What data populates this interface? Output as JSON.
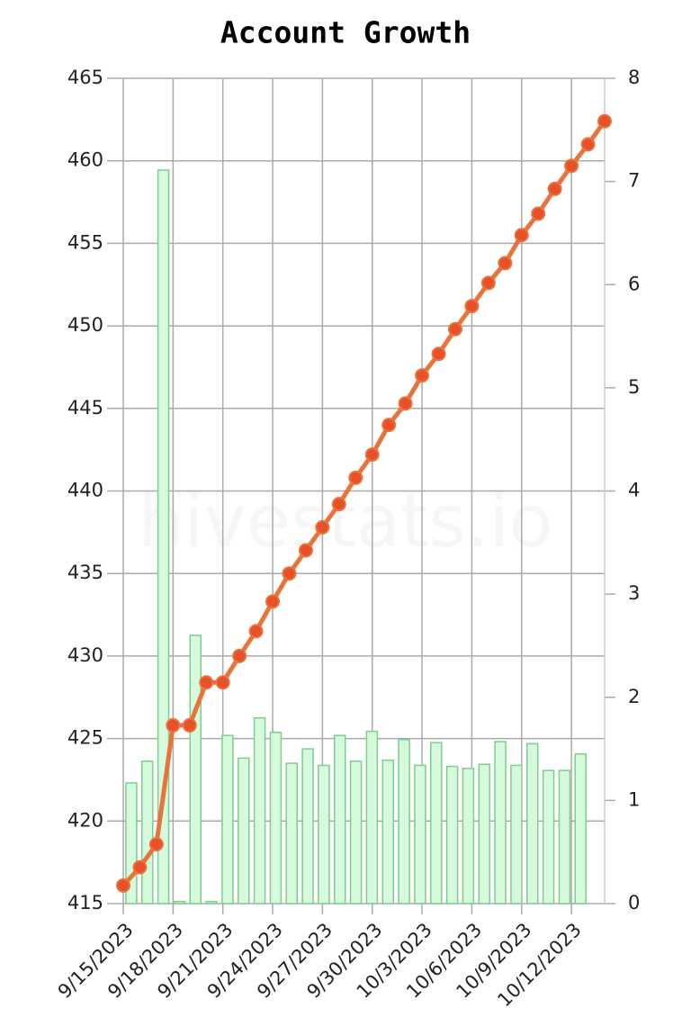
{
  "chart_data": {
    "type": "bar-line",
    "title": "Account Growth",
    "watermark": "hivestats.io",
    "categories": [
      "9/15/2023",
      null,
      null,
      "9/18/2023",
      null,
      null,
      "9/21/2023",
      null,
      null,
      "9/24/2023",
      null,
      null,
      "9/27/2023",
      null,
      null,
      "9/30/2023",
      null,
      null,
      "10/3/2023",
      null,
      null,
      "10/6/2023",
      null,
      null,
      "10/9/2023",
      null,
      null,
      "10/12/2023",
      null,
      null
    ],
    "series": [
      {
        "type": "line",
        "color": "#e8743b",
        "marker_color": "#e8502a",
        "values": [
          416.1,
          417.2,
          418.6,
          425.8,
          425.8,
          428.4,
          428.4,
          430.0,
          431.5,
          433.3,
          435.0,
          436.4,
          437.8,
          439.2,
          440.8,
          442.2,
          444.0,
          445.3,
          447.0,
          448.3,
          449.8,
          451.2,
          452.6,
          453.8,
          455.5,
          456.8,
          458.3,
          459.7,
          461.0,
          462.4
        ]
      },
      {
        "type": "bar",
        "axis": "y2",
        "color": "#d6fadc",
        "edge_color": "#7ccf8c",
        "values": [
          1.17,
          1.38,
          7.11,
          0.02,
          2.6,
          0.02,
          1.63,
          1.41,
          1.8,
          1.66,
          1.36,
          1.5,
          1.34,
          1.63,
          1.38,
          1.67,
          1.39,
          1.59,
          1.34,
          1.56,
          1.33,
          1.31,
          1.35,
          1.57,
          1.34,
          1.55,
          1.29,
          1.29,
          1.45,
          null
        ]
      }
    ],
    "ylim": [
      415,
      465
    ],
    "yticks": [
      415,
      420,
      425,
      430,
      435,
      440,
      445,
      450,
      455,
      460,
      465
    ],
    "y2lim": [
      0,
      8
    ],
    "y2ticks": [
      0,
      1,
      2,
      3,
      4,
      5,
      6,
      7,
      8
    ],
    "grid": true
  }
}
